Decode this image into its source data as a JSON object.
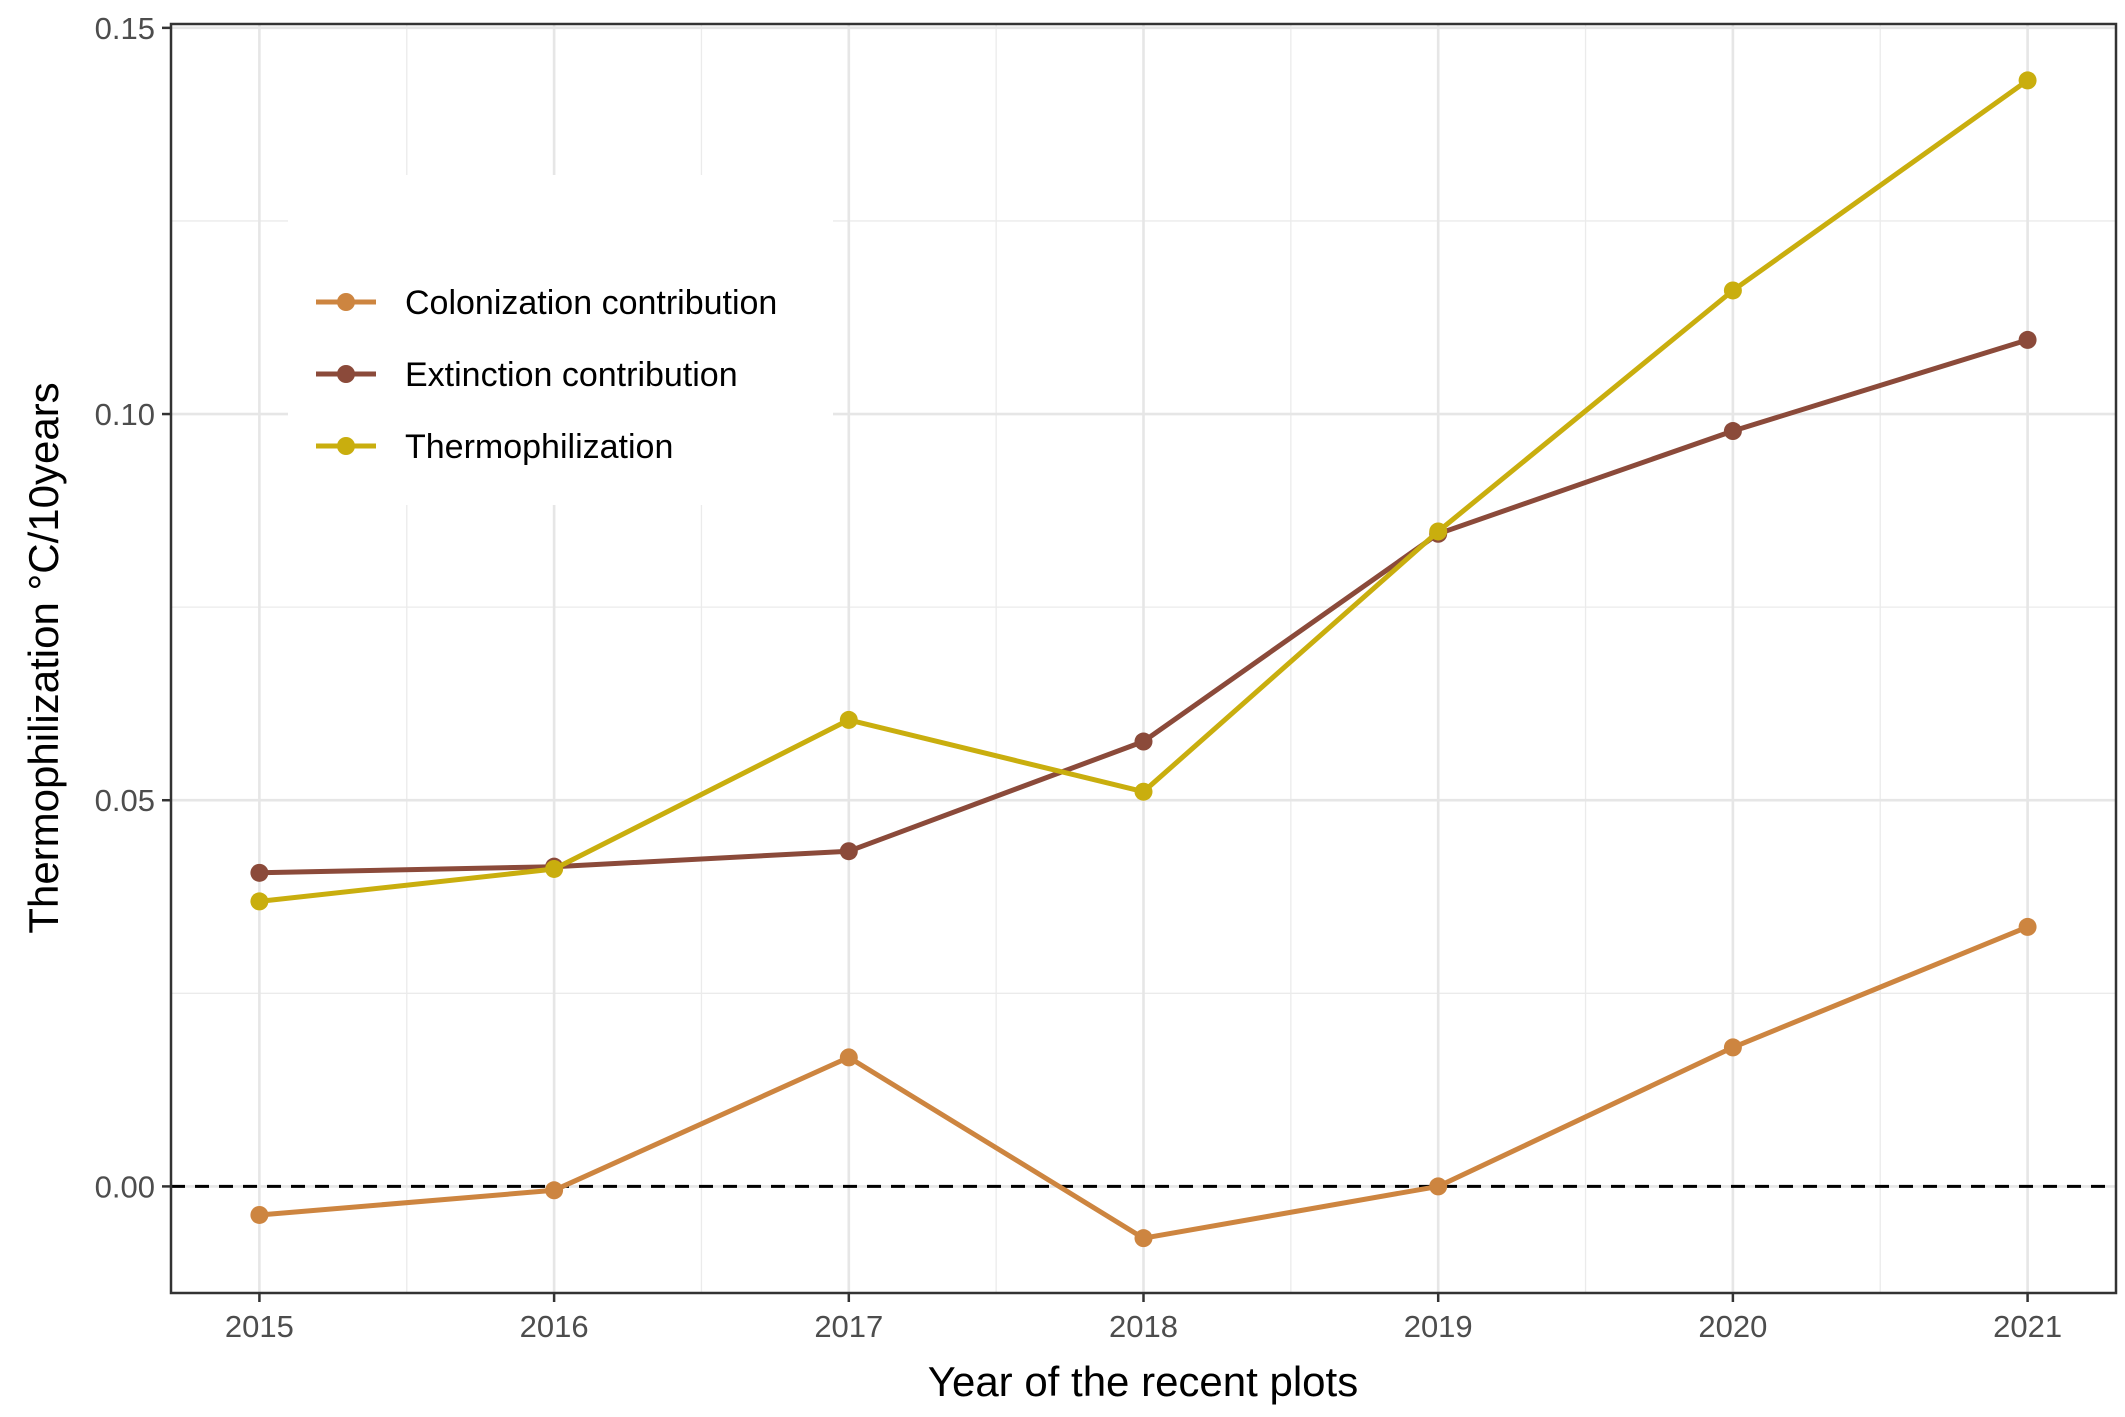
{
  "chart_data": {
    "type": "line",
    "xlabel": "Year of the recent plots",
    "ylabel": "Thermophilization °C/10years",
    "x": [
      2015,
      2016,
      2017,
      2018,
      2019,
      2020,
      2021
    ],
    "xlim": [
      2014.7,
      2021.3
    ],
    "ylim": [
      -0.0138,
      0.1505
    ],
    "y_ticks": [
      0.0,
      0.05,
      0.1,
      0.15
    ],
    "y_tick_labels": [
      "0.00",
      "0.05",
      "0.10",
      "0.15"
    ],
    "x_tick_labels": [
      "2015",
      "2016",
      "2017",
      "2018",
      "2019",
      "2020",
      "2021"
    ],
    "reference_line": {
      "y": 0,
      "style": "dashed",
      "color": "#000000"
    },
    "grid": true,
    "legend_position": "top-left",
    "series": [
      {
        "name": "Colonization contribution",
        "color": "#CD8540",
        "values": [
          -0.0037,
          -0.0005,
          0.0167,
          -0.0067,
          0.0,
          0.018,
          0.0336
        ]
      },
      {
        "name": "Extinction contribution",
        "color": "#8B4A3A",
        "values": [
          0.0406,
          0.0414,
          0.0434,
          0.0576,
          0.0845,
          0.0978,
          0.1096
        ]
      },
      {
        "name": "Thermophilization",
        "color": "#C9AE0E",
        "values": [
          0.0369,
          0.0411,
          0.0604,
          0.0511,
          0.0848,
          0.116,
          0.1432
        ]
      }
    ]
  }
}
